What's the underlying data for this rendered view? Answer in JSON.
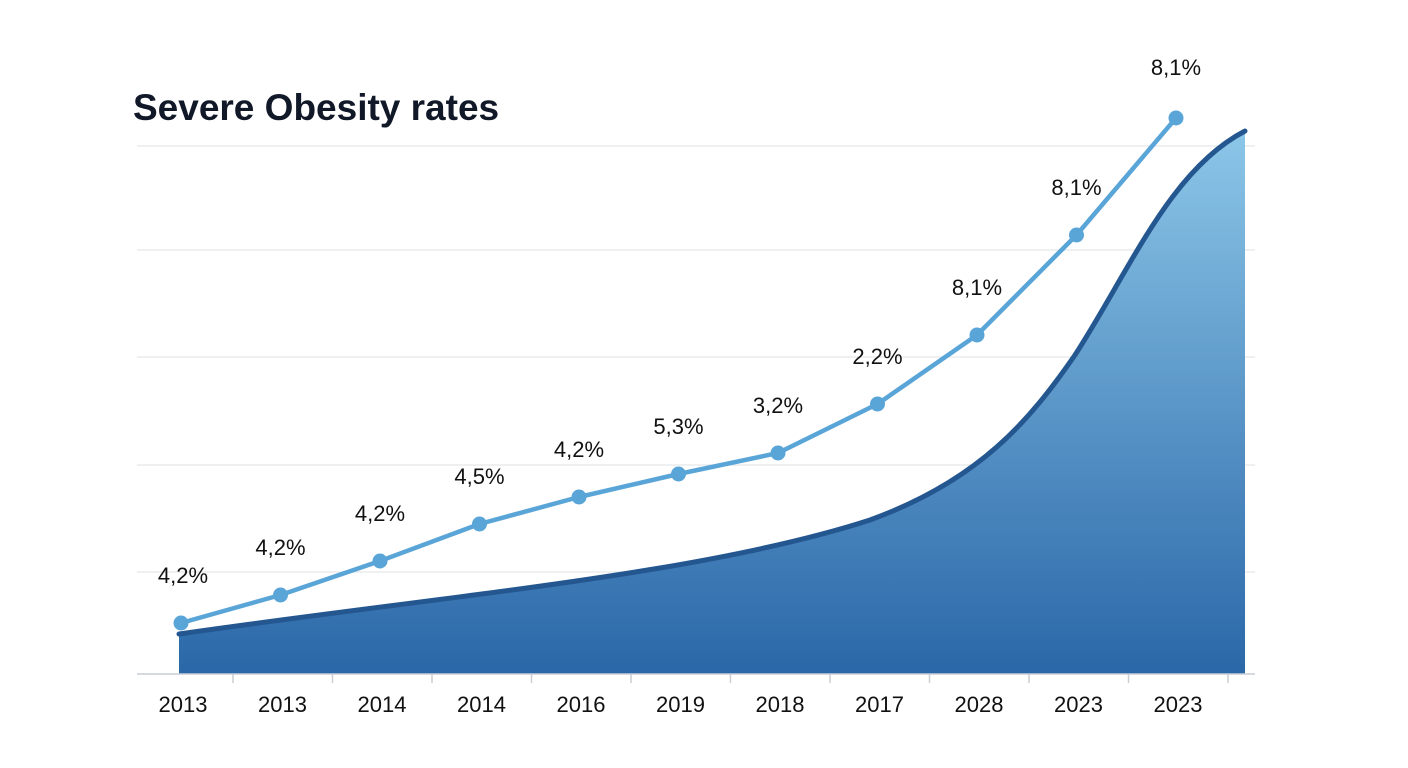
{
  "chart_data": {
    "type": "line",
    "title": "Severe Obesity rates",
    "categories": [
      "2013",
      "2013",
      "2014",
      "2014",
      "2016",
      "2019",
      "2018",
      "2017",
      "2028",
      "2023",
      "2023"
    ],
    "series": [
      {
        "values": [
          4.2,
          4.2,
          4.2,
          4.5,
          4.2,
          5.3,
          3.2,
          2.2,
          8.1,
          8.1,
          8.1
        ],
        "labels": [
          "4,2%",
          "4,2%",
          "4,2%",
          "4,5%",
          "4,2%",
          "5,3%",
          "3,2%",
          "2,2%",
          "8,1%",
          "8,1%",
          "8,1%"
        ],
        "color": "#5aa5d8"
      }
    ],
    "area": {
      "color_top": "#8cc6e8",
      "color_bottom": "#2a67a8",
      "edge_color": "#24568f"
    },
    "grid": true,
    "legend": "none"
  }
}
